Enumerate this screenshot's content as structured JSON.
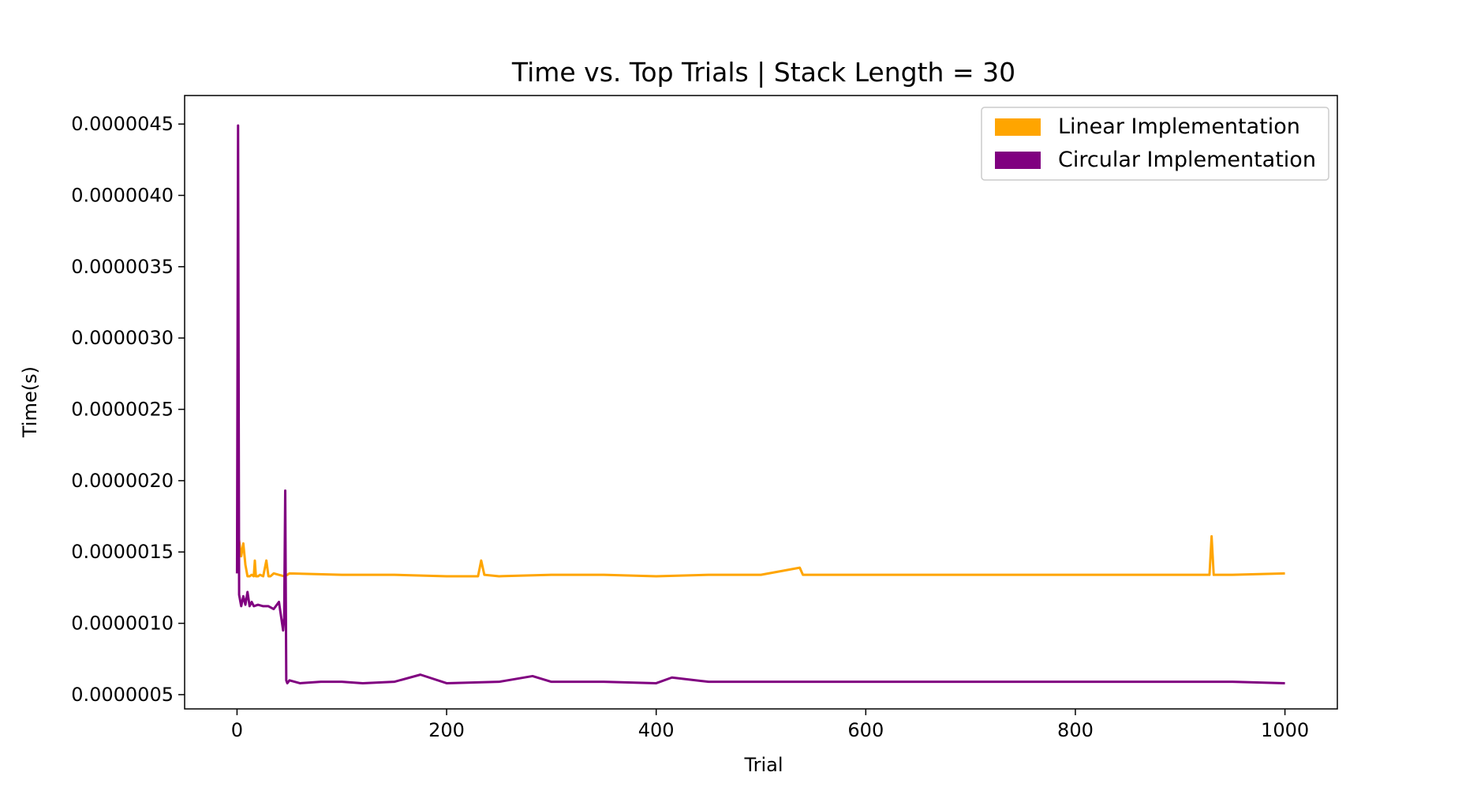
{
  "chart_data": {
    "type": "line",
    "title": "Time vs. Top Trials | Stack Length = 30",
    "xlabel": "Trial",
    "ylabel": "Time(s)",
    "xlim": [
      -50,
      1050
    ],
    "ylim": [
      4e-07,
      4.7e-06
    ],
    "xticks": [
      0,
      200,
      400,
      600,
      800,
      1000
    ],
    "xtick_labels": [
      "0",
      "200",
      "400",
      "600",
      "800",
      "1000"
    ],
    "yticks": [
      5e-07,
      1e-06,
      1.5e-06,
      2e-06,
      2.5e-06,
      3e-06,
      3.5e-06,
      4e-06,
      4.5e-06
    ],
    "ytick_labels": [
      "0.0000005",
      "0.0000010",
      "0.0000015",
      "0.0000020",
      "0.0000025",
      "0.0000030",
      "0.0000035",
      "0.0000040",
      "0.0000045"
    ],
    "grid": false,
    "legend_position": "top-right",
    "series": [
      {
        "name": "Linear Implementation",
        "color": "#FFA500",
        "x": [
          0,
          2,
          4,
          6,
          8,
          10,
          12,
          14,
          16,
          17,
          18,
          20,
          22,
          25,
          28,
          30,
          32,
          35,
          40,
          45,
          48,
          50,
          100,
          150,
          200,
          230,
          233,
          236,
          250,
          300,
          350,
          400,
          450,
          500,
          537,
          540,
          600,
          650,
          700,
          750,
          800,
          850,
          900,
          928,
          930,
          932,
          950,
          1000
        ],
        "y": [
          1.45e-06,
          1.58e-06,
          1.47e-06,
          1.56e-06,
          1.41e-06,
          1.33e-06,
          1.33e-06,
          1.34e-06,
          1.33e-06,
          1.44e-06,
          1.33e-06,
          1.33e-06,
          1.34e-06,
          1.33e-06,
          1.44e-06,
          1.33e-06,
          1.33e-06,
          1.35e-06,
          1.34e-06,
          1.33e-06,
          1.34e-06,
          1.35e-06,
          1.34e-06,
          1.34e-06,
          1.33e-06,
          1.33e-06,
          1.44e-06,
          1.34e-06,
          1.33e-06,
          1.34e-06,
          1.34e-06,
          1.33e-06,
          1.34e-06,
          1.34e-06,
          1.39e-06,
          1.34e-06,
          1.34e-06,
          1.34e-06,
          1.34e-06,
          1.34e-06,
          1.34e-06,
          1.34e-06,
          1.34e-06,
          1.34e-06,
          1.61e-06,
          1.34e-06,
          1.34e-06,
          1.35e-06
        ]
      },
      {
        "name": "Circular Implementation",
        "color": "#800080",
        "x": [
          0,
          1,
          2,
          4,
          6,
          8,
          10,
          12,
          14,
          16,
          20,
          25,
          30,
          35,
          40,
          42,
          44,
          45,
          46,
          47,
          48,
          50,
          60,
          80,
          100,
          120,
          150,
          175,
          200,
          250,
          282,
          300,
          350,
          400,
          415,
          450,
          500,
          550,
          600,
          650,
          700,
          750,
          800,
          850,
          900,
          950,
          1000
        ],
        "y": [
          1.35e-06,
          4.49e-06,
          1.2e-06,
          1.12e-06,
          1.19e-06,
          1.13e-06,
          1.22e-06,
          1.12e-06,
          1.15e-06,
          1.12e-06,
          1.13e-06,
          1.12e-06,
          1.12e-06,
          1.1e-06,
          1.15e-06,
          1.05e-06,
          9.5e-07,
          1.04e-06,
          1.93e-06,
          6e-07,
          5.8e-07,
          6e-07,
          5.8e-07,
          5.9e-07,
          5.9e-07,
          5.8e-07,
          5.9e-07,
          6.4e-07,
          5.8e-07,
          5.9e-07,
          6.3e-07,
          5.9e-07,
          5.9e-07,
          5.8e-07,
          6.2e-07,
          5.9e-07,
          5.9e-07,
          5.9e-07,
          5.9e-07,
          5.9e-07,
          5.9e-07,
          5.9e-07,
          5.9e-07,
          5.9e-07,
          5.9e-07,
          5.9e-07,
          5.8e-07
        ]
      }
    ]
  }
}
